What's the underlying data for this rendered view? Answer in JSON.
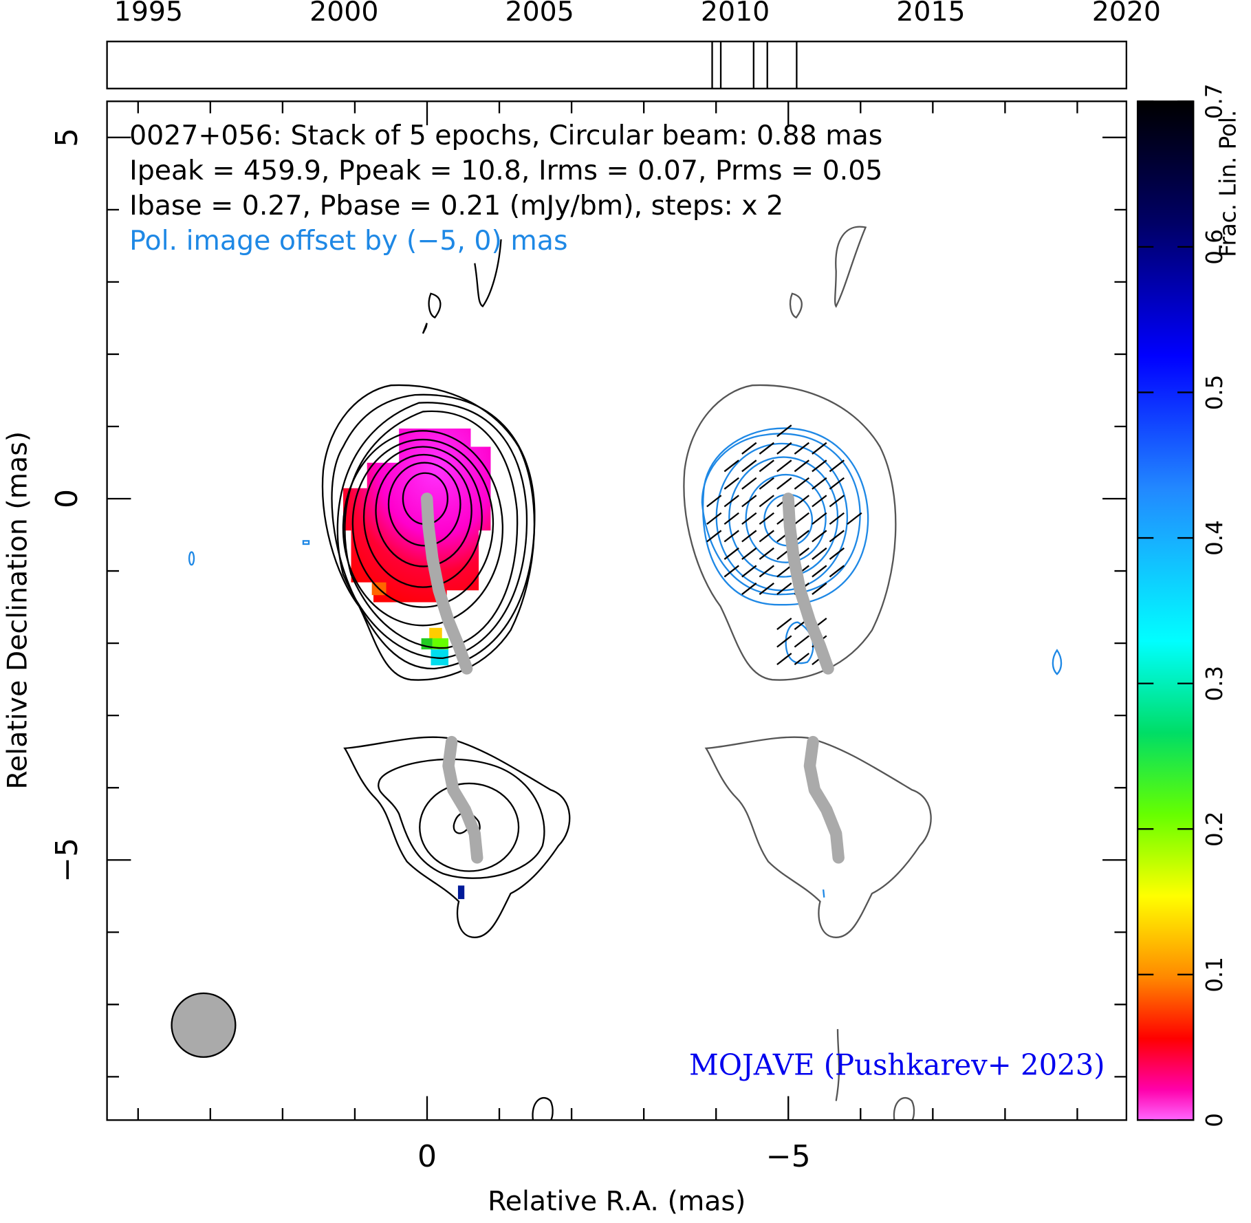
{
  "chart_data": {
    "type": "contour",
    "title": [
      "0027+056: Stack of 5 epochs, Circular beam: 0.88 mas",
      "Ipeak = 459.9, Ppeak = 10.8, Irms = 0.07, Prms = 0.05",
      "Ibase = 0.27, Pbase = 0.21 (mJy/bm), steps: x 2"
    ],
    "subtitle": "Pol. image offset by (−5, 0) mas",
    "annotation": "MOJAVE (Pushkarev+ 2023)",
    "xlabel": "Relative R.A. (mas)",
    "ylabel": "Relative Declination (mas)",
    "xlim": [
      4.43,
      -9.68
    ],
    "ylim": [
      -8.6,
      5.5
    ],
    "xticks": [
      0,
      {
        "value": -5,
        "label": "−5"
      }
    ],
    "yticks": [
      5,
      0,
      {
        "value": -5,
        "label": "−5"
      }
    ],
    "xminorticks": [
      4,
      3,
      2,
      1,
      -1,
      -2,
      -3,
      -4,
      -6,
      -7,
      -8,
      -9
    ],
    "yminorticks": [
      4,
      3,
      2,
      1,
      -1,
      -2,
      -3,
      -4,
      -6,
      -7,
      -8
    ],
    "timeline": {
      "xlim": [
        1993.94,
        2020
      ],
      "xticks": [
        1995,
        2000,
        2005,
        2010,
        2015,
        2020
      ],
      "epochs": [
        2009.41,
        2009.63,
        2010.47,
        2010.82,
        2011.57
      ]
    },
    "colorbar": {
      "label": "Frac. Lin. Pol.",
      "lim": [
        0,
        0.7
      ],
      "ticks": [
        0,
        0.1,
        0.2,
        0.3,
        0.4,
        0.5,
        0.6,
        0.7
      ]
    }
  }
}
